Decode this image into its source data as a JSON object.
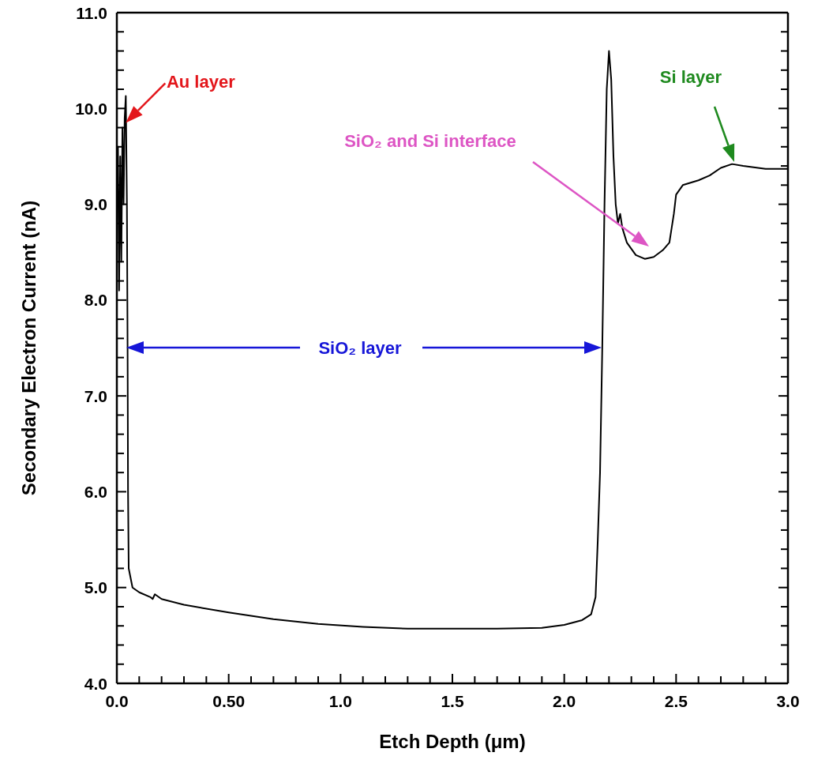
{
  "chart_data": {
    "type": "line",
    "xlabel": "Etch Depth (μm)",
    "ylabel": "Secondary Electron Current (nA)",
    "xlim": [
      0,
      3
    ],
    "ylim": [
      4,
      11
    ],
    "xticks": [
      {
        "value": 0,
        "label": "0.0"
      },
      {
        "value": 0.1,
        "label": null
      },
      {
        "value": 0.2,
        "label": null
      },
      {
        "value": 0.3,
        "label": null
      },
      {
        "value": 0.4,
        "label": null
      },
      {
        "value": 0.5,
        "label": "0.50"
      },
      {
        "value": 0.6,
        "label": null
      },
      {
        "value": 0.7,
        "label": null
      },
      {
        "value": 0.8,
        "label": null
      },
      {
        "value": 0.9,
        "label": null
      },
      {
        "value": 1,
        "label": "1.0"
      },
      {
        "value": 1.1,
        "label": null
      },
      {
        "value": 1.2,
        "label": null
      },
      {
        "value": 1.3,
        "label": null
      },
      {
        "value": 1.4,
        "label": null
      },
      {
        "value": 1.5,
        "label": "1.5"
      },
      {
        "value": 1.6,
        "label": null
      },
      {
        "value": 1.7,
        "label": null
      },
      {
        "value": 1.8,
        "label": null
      },
      {
        "value": 1.9,
        "label": null
      },
      {
        "value": 2,
        "label": "2.0"
      },
      {
        "value": 2.1,
        "label": null
      },
      {
        "value": 2.2,
        "label": null
      },
      {
        "value": 2.3,
        "label": null
      },
      {
        "value": 2.4,
        "label": null
      },
      {
        "value": 2.5,
        "label": "2.5"
      },
      {
        "value": 2.6,
        "label": null
      },
      {
        "value": 2.7,
        "label": null
      },
      {
        "value": 2.8,
        "label": null
      },
      {
        "value": 2.9,
        "label": null
      },
      {
        "value": 3,
        "label": "3.0"
      }
    ],
    "yticks": [
      {
        "value": 4,
        "label": "4.0"
      },
      {
        "value": 4.2,
        "label": null
      },
      {
        "value": 4.4,
        "label": null
      },
      {
        "value": 4.6,
        "label": null
      },
      {
        "value": 4.8,
        "label": null
      },
      {
        "value": 5,
        "label": "5.0"
      },
      {
        "value": 5.2,
        "label": null
      },
      {
        "value": 5.4,
        "label": null
      },
      {
        "value": 5.6,
        "label": null
      },
      {
        "value": 5.8,
        "label": null
      },
      {
        "value": 6,
        "label": "6.0"
      },
      {
        "value": 6.2,
        "label": null
      },
      {
        "value": 6.4,
        "label": null
      },
      {
        "value": 6.6,
        "label": null
      },
      {
        "value": 6.8,
        "label": null
      },
      {
        "value": 7,
        "label": "7.0"
      },
      {
        "value": 7.2,
        "label": null
      },
      {
        "value": 7.4,
        "label": null
      },
      {
        "value": 7.6,
        "label": null
      },
      {
        "value": 7.8,
        "label": null
      },
      {
        "value": 8,
        "label": "8.0"
      },
      {
        "value": 8.2,
        "label": null
      },
      {
        "value": 8.4,
        "label": null
      },
      {
        "value": 8.6,
        "label": null
      },
      {
        "value": 8.8,
        "label": null
      },
      {
        "value": 9,
        "label": "9.0"
      },
      {
        "value": 9.2,
        "label": null
      },
      {
        "value": 9.4,
        "label": null
      },
      {
        "value": 9.6,
        "label": null
      },
      {
        "value": 9.8,
        "label": null
      },
      {
        "value": 10,
        "label": "10.0"
      },
      {
        "value": 10.2,
        "label": null
      },
      {
        "value": 10.4,
        "label": null
      },
      {
        "value": 10.6,
        "label": null
      },
      {
        "value": 10.8,
        "label": null
      },
      {
        "value": 11,
        "label": "11.0"
      }
    ],
    "series": [
      {
        "color": "#000000",
        "x": [
          0.005,
          0.01,
          0.015,
          0.02,
          0.025,
          0.03,
          0.035,
          0.04,
          0.045,
          0.048,
          0.05,
          0.053,
          0.07,
          0.1,
          0.15,
          0.16,
          0.17,
          0.2,
          0.3,
          0.5,
          0.7,
          0.9,
          1.1,
          1.3,
          1.5,
          1.7,
          1.9,
          2.0,
          2.08,
          2.12,
          2.14,
          2.15,
          2.16,
          2.17,
          2.18,
          2.19,
          2.2,
          2.21,
          2.22,
          2.23,
          2.24,
          2.25,
          2.26,
          2.28,
          2.32,
          2.36,
          2.4,
          2.44,
          2.47,
          2.49,
          2.5,
          2.53,
          2.6,
          2.65,
          2.7,
          2.75,
          2.8,
          2.9,
          3.0
        ],
        "values": [
          9.6,
          8.1,
          9.5,
          8.4,
          9.8,
          9.0,
          9.9,
          10.13,
          9.0,
          7.5,
          6.0,
          5.2,
          5.0,
          4.95,
          4.9,
          4.88,
          4.93,
          4.88,
          4.82,
          4.74,
          4.67,
          4.62,
          4.59,
          4.57,
          4.57,
          4.57,
          4.58,
          4.61,
          4.66,
          4.72,
          4.9,
          5.5,
          6.2,
          7.5,
          9.0,
          10.2,
          10.6,
          10.3,
          9.5,
          9.0,
          8.8,
          8.9,
          8.75,
          8.6,
          8.47,
          8.43,
          8.45,
          8.52,
          8.6,
          8.9,
          9.1,
          9.2,
          9.25,
          9.3,
          9.38,
          9.42,
          9.4,
          9.37,
          9.37
        ]
      }
    ],
    "annotations": [
      {
        "text": "Au layer",
        "x": 0.04,
        "y": 9.85
      },
      "SiO₂ and Si interface",
      "Si layer",
      "SiO₂ layer"
    ]
  }
}
